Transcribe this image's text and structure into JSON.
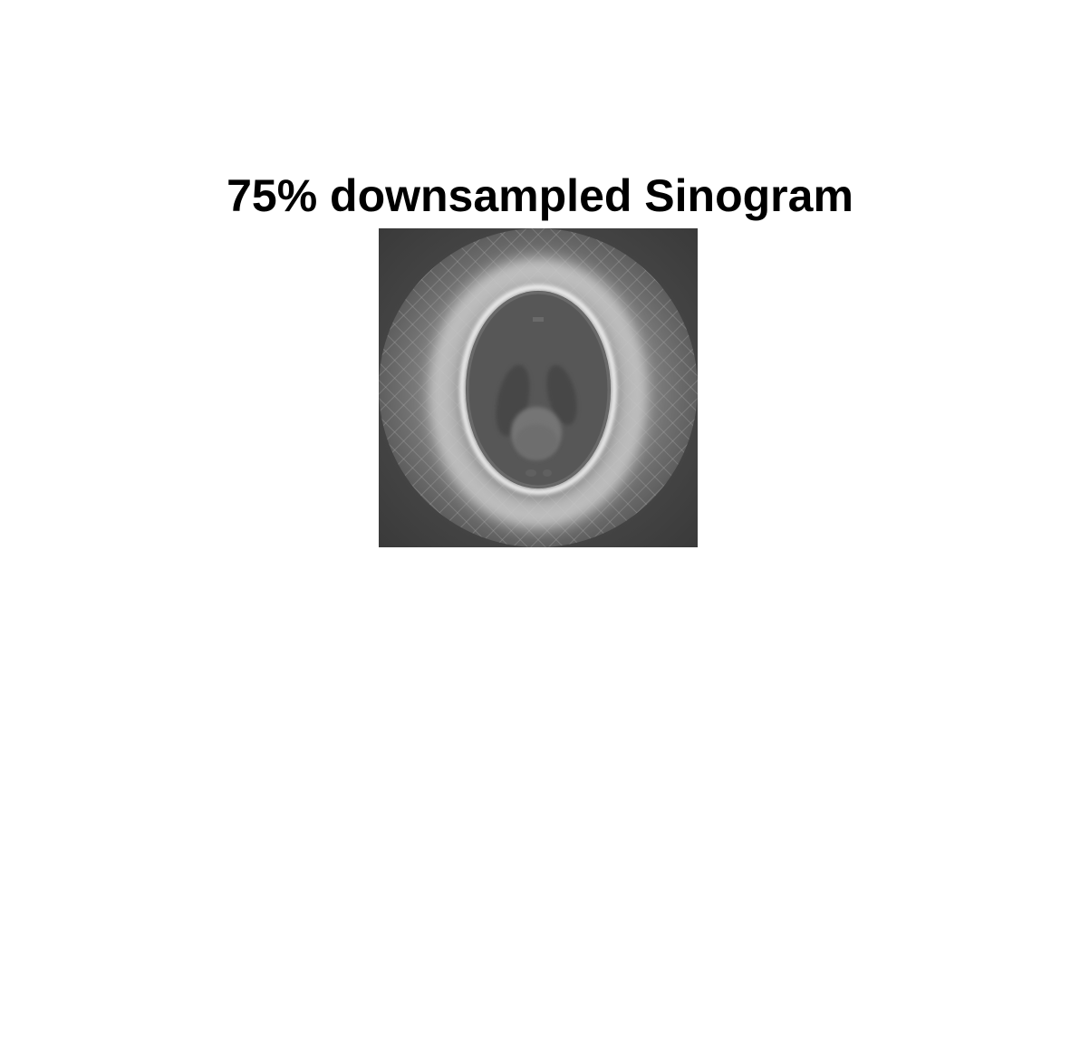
{
  "figure": {
    "title": "75% downsampled Sinogram"
  },
  "image": {
    "subject": "reconstructed-phantom",
    "colormap": "gray",
    "colors": {
      "background_dark": "#3f3f3f",
      "outer_disk": "#6e6e6e",
      "halo": "#bdbdbd",
      "skull_ring": "#e6e6e6",
      "interior": "#555555",
      "lobes": "#4a4a4a",
      "blob": "#707070"
    }
  }
}
